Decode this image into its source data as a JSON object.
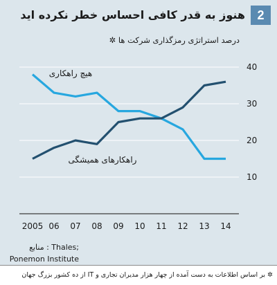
{
  "figure_number": "2",
  "source": [
    "منابع : Thales;",
    "Ponemon Institute"
  ],
  "footnote": "✲ بر اساس اطلاعات به دست آمده از چهار هزار مدیران تجاری و IT از ده کشور بزرگ جهان",
  "colors": {
    "panel_background": "#dce6ec",
    "badge_background": "#5a8ab1",
    "gridline": "#ffffff",
    "baseline": "#3c3c3c"
  },
  "chart_data": {
    "type": "line",
    "title": "هنوز به قدر کافی احساس خطر نکرده اید",
    "subtitle": "درصد استراتژی رمزگذاری شرکت ها ✲",
    "categories": [
      "2005",
      "06",
      "07",
      "08",
      "09",
      "10",
      "11",
      "12",
      "13",
      "14"
    ],
    "ylim": [
      0,
      40
    ],
    "yticks": [
      10,
      20,
      30,
      40
    ],
    "yaxis_position": "right",
    "grid": true,
    "legend": "inline",
    "series": [
      {
        "name": "هیچ راهکاری",
        "values": [
          38,
          33,
          32,
          33,
          28,
          28,
          26,
          23,
          15,
          15
        ],
        "color": "#27a7df"
      },
      {
        "name": "راهکارهای همیشگی",
        "values": [
          15,
          18,
          20,
          19,
          25,
          26,
          26,
          29,
          35,
          36
        ],
        "color": "#23506f"
      }
    ]
  }
}
